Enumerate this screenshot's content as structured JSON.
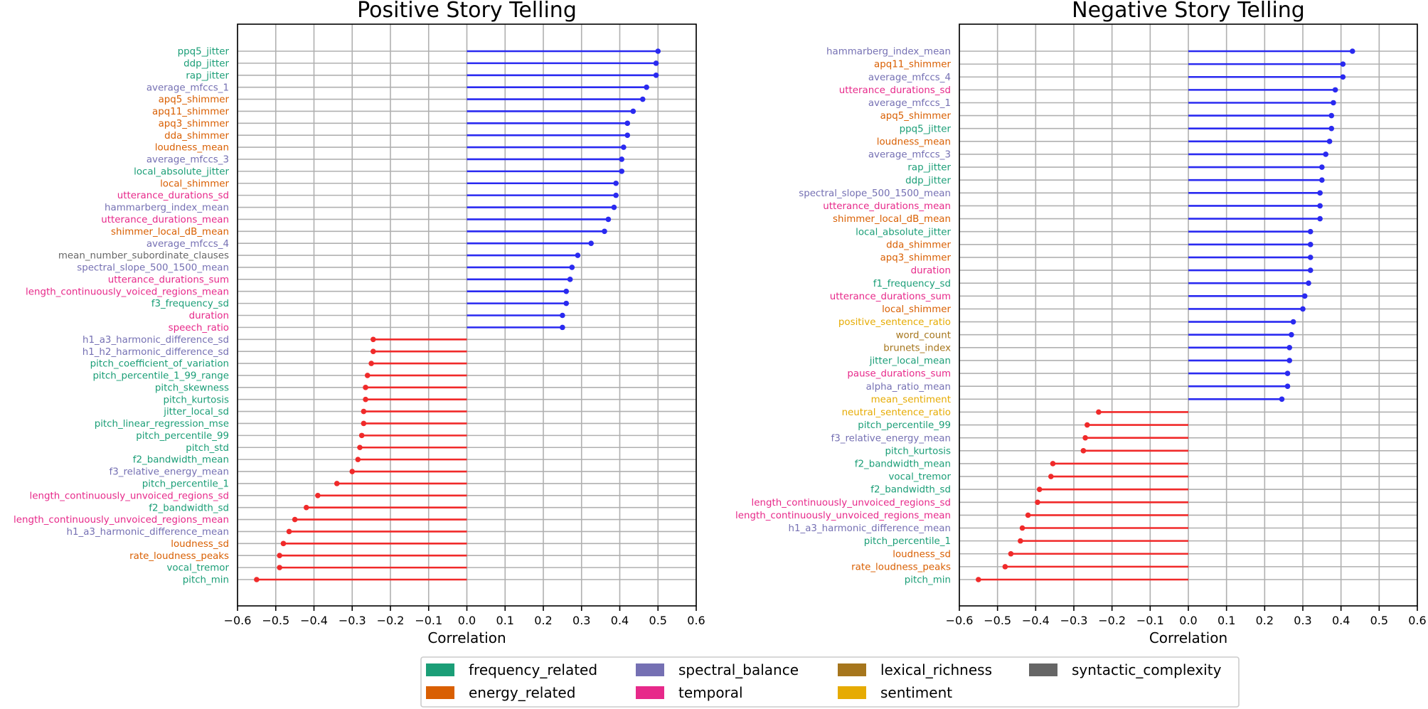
{
  "category_colors": {
    "frequency_related": "#1b9e77",
    "energy_related": "#d95f02",
    "spectral_balance": "#7570b3",
    "temporal": "#e7298a",
    "lexical_richness": "#a6761d",
    "sentiment": "#e6ab02",
    "syntactic_complexity": "#666666"
  },
  "series_colors": {
    "positive": "#2a2af0",
    "negative": "#f02a2a"
  },
  "legend": [
    {
      "label": "frequency_related",
      "category": "frequency_related"
    },
    {
      "label": "energy_related",
      "category": "energy_related"
    },
    {
      "label": "spectral_balance",
      "category": "spectral_balance"
    },
    {
      "label": "temporal",
      "category": "temporal"
    },
    {
      "label": "lexical_richness",
      "category": "lexical_richness"
    },
    {
      "label": "sentiment",
      "category": "sentiment"
    },
    {
      "label": "syntactic_complexity",
      "category": "syntactic_complexity"
    }
  ],
  "chart_data": [
    {
      "type": "lollipop-horizontal",
      "title": "Positive Story Telling",
      "xlabel": "Correlation",
      "xlim": [
        -0.6,
        0.6
      ],
      "xticks": [
        "−0.6",
        "−0.5",
        "−0.4",
        "−0.3",
        "−0.2",
        "−0.1",
        "0.0",
        "0.1",
        "0.2",
        "0.3",
        "0.4",
        "0.5",
        "0.6"
      ],
      "features": [
        {
          "name": "ppq5_jitter",
          "value": 0.5,
          "category": "frequency_related"
        },
        {
          "name": "ddp_jitter",
          "value": 0.495,
          "category": "frequency_related"
        },
        {
          "name": "rap_jitter",
          "value": 0.495,
          "category": "frequency_related"
        },
        {
          "name": "average_mfccs_1",
          "value": 0.47,
          "category": "spectral_balance"
        },
        {
          "name": "apq5_shimmer",
          "value": 0.46,
          "category": "energy_related"
        },
        {
          "name": "apq11_shimmer",
          "value": 0.435,
          "category": "energy_related"
        },
        {
          "name": "apq3_shimmer",
          "value": 0.42,
          "category": "energy_related"
        },
        {
          "name": "dda_shimmer",
          "value": 0.42,
          "category": "energy_related"
        },
        {
          "name": "loudness_mean",
          "value": 0.41,
          "category": "energy_related"
        },
        {
          "name": "average_mfccs_3",
          "value": 0.405,
          "category": "spectral_balance"
        },
        {
          "name": "local_absolute_jitter",
          "value": 0.405,
          "category": "frequency_related"
        },
        {
          "name": "local_shimmer",
          "value": 0.39,
          "category": "energy_related"
        },
        {
          "name": "utterance_durations_sd",
          "value": 0.39,
          "category": "temporal"
        },
        {
          "name": "hammarberg_index_mean",
          "value": 0.385,
          "category": "spectral_balance"
        },
        {
          "name": "utterance_durations_mean",
          "value": 0.37,
          "category": "temporal"
        },
        {
          "name": "shimmer_local_dB_mean",
          "value": 0.36,
          "category": "energy_related"
        },
        {
          "name": "average_mfccs_4",
          "value": 0.325,
          "category": "spectral_balance"
        },
        {
          "name": "mean_number_subordinate_clauses",
          "value": 0.29,
          "category": "syntactic_complexity"
        },
        {
          "name": "spectral_slope_500_1500_mean",
          "value": 0.275,
          "category": "spectral_balance"
        },
        {
          "name": "utterance_durations_sum",
          "value": 0.27,
          "category": "temporal"
        },
        {
          "name": "length_continuously_voiced_regions_mean",
          "value": 0.26,
          "category": "temporal"
        },
        {
          "name": "f3_frequency_sd",
          "value": 0.26,
          "category": "frequency_related"
        },
        {
          "name": "duration",
          "value": 0.25,
          "category": "temporal"
        },
        {
          "name": "speech_ratio",
          "value": 0.25,
          "category": "temporal"
        },
        {
          "name": "h1_a3_harmonic_difference_sd",
          "value": -0.245,
          "category": "spectral_balance"
        },
        {
          "name": "h1_h2_harmonic_difference_sd",
          "value": -0.245,
          "category": "spectral_balance"
        },
        {
          "name": "pitch_coefficient_of_variation",
          "value": -0.25,
          "category": "frequency_related"
        },
        {
          "name": "pitch_percentile_1_99_range",
          "value": -0.26,
          "category": "frequency_related"
        },
        {
          "name": "pitch_skewness",
          "value": -0.265,
          "category": "frequency_related"
        },
        {
          "name": "pitch_kurtosis",
          "value": -0.265,
          "category": "frequency_related"
        },
        {
          "name": "jitter_local_sd",
          "value": -0.27,
          "category": "frequency_related"
        },
        {
          "name": "pitch_linear_regression_mse",
          "value": -0.27,
          "category": "frequency_related"
        },
        {
          "name": "pitch_percentile_99",
          "value": -0.275,
          "category": "frequency_related"
        },
        {
          "name": "pitch_std",
          "value": -0.28,
          "category": "frequency_related"
        },
        {
          "name": "f2_bandwidth_mean",
          "value": -0.285,
          "category": "frequency_related"
        },
        {
          "name": "f3_relative_energy_mean",
          "value": -0.3,
          "category": "spectral_balance"
        },
        {
          "name": "pitch_percentile_1",
          "value": -0.34,
          "category": "frequency_related"
        },
        {
          "name": "length_continuously_unvoiced_regions_sd",
          "value": -0.39,
          "category": "temporal"
        },
        {
          "name": "f2_bandwidth_sd",
          "value": -0.42,
          "category": "frequency_related"
        },
        {
          "name": "length_continuously_unvoiced_regions_mean",
          "value": -0.45,
          "category": "temporal"
        },
        {
          "name": "h1_a3_harmonic_difference_mean",
          "value": -0.465,
          "category": "spectral_balance"
        },
        {
          "name": "loudness_sd",
          "value": -0.48,
          "category": "energy_related"
        },
        {
          "name": "rate_loudness_peaks",
          "value": -0.49,
          "category": "energy_related"
        },
        {
          "name": "vocal_tremor",
          "value": -0.49,
          "category": "frequency_related"
        },
        {
          "name": "pitch_min",
          "value": -0.55,
          "category": "frequency_related"
        }
      ]
    },
    {
      "type": "lollipop-horizontal",
      "title": "Negative Story Telling",
      "xlabel": "Correlation",
      "xlim": [
        -0.6,
        0.6
      ],
      "xticks": [
        "−0.6",
        "−0.5",
        "−0.4",
        "−0.3",
        "−0.2",
        "−0.1",
        "0.0",
        "0.1",
        "0.2",
        "0.3",
        "0.4",
        "0.5",
        "0.6"
      ],
      "features": [
        {
          "name": "hammarberg_index_mean",
          "value": 0.43,
          "category": "spectral_balance"
        },
        {
          "name": "apq11_shimmer",
          "value": 0.405,
          "category": "energy_related"
        },
        {
          "name": "average_mfccs_4",
          "value": 0.405,
          "category": "spectral_balance"
        },
        {
          "name": "utterance_durations_sd",
          "value": 0.385,
          "category": "temporal"
        },
        {
          "name": "average_mfccs_1",
          "value": 0.38,
          "category": "spectral_balance"
        },
        {
          "name": "apq5_shimmer",
          "value": 0.375,
          "category": "energy_related"
        },
        {
          "name": "ppq5_jitter",
          "value": 0.375,
          "category": "frequency_related"
        },
        {
          "name": "loudness_mean",
          "value": 0.37,
          "category": "energy_related"
        },
        {
          "name": "average_mfccs_3",
          "value": 0.36,
          "category": "spectral_balance"
        },
        {
          "name": "rap_jitter",
          "value": 0.35,
          "category": "frequency_related"
        },
        {
          "name": "ddp_jitter",
          "value": 0.35,
          "category": "frequency_related"
        },
        {
          "name": "spectral_slope_500_1500_mean",
          "value": 0.345,
          "category": "spectral_balance"
        },
        {
          "name": "utterance_durations_mean",
          "value": 0.345,
          "category": "temporal"
        },
        {
          "name": "shimmer_local_dB_mean",
          "value": 0.345,
          "category": "energy_related"
        },
        {
          "name": "local_absolute_jitter",
          "value": 0.32,
          "category": "frequency_related"
        },
        {
          "name": "dda_shimmer",
          "value": 0.32,
          "category": "energy_related"
        },
        {
          "name": "apq3_shimmer",
          "value": 0.32,
          "category": "energy_related"
        },
        {
          "name": "duration",
          "value": 0.32,
          "category": "temporal"
        },
        {
          "name": "f1_frequency_sd",
          "value": 0.315,
          "category": "frequency_related"
        },
        {
          "name": "utterance_durations_sum",
          "value": 0.305,
          "category": "temporal"
        },
        {
          "name": "local_shimmer",
          "value": 0.3,
          "category": "energy_related"
        },
        {
          "name": "positive_sentence_ratio",
          "value": 0.275,
          "category": "sentiment"
        },
        {
          "name": "word_count",
          "value": 0.27,
          "category": "lexical_richness"
        },
        {
          "name": "brunets_index",
          "value": 0.265,
          "category": "lexical_richness"
        },
        {
          "name": "jitter_local_mean",
          "value": 0.265,
          "category": "frequency_related"
        },
        {
          "name": "pause_durations_sum",
          "value": 0.26,
          "category": "temporal"
        },
        {
          "name": "alpha_ratio_mean",
          "value": 0.26,
          "category": "spectral_balance"
        },
        {
          "name": "mean_sentiment",
          "value": 0.245,
          "category": "sentiment"
        },
        {
          "name": "neutral_sentence_ratio",
          "value": -0.235,
          "category": "sentiment"
        },
        {
          "name": "pitch_percentile_99",
          "value": -0.265,
          "category": "frequency_related"
        },
        {
          "name": "f3_relative_energy_mean",
          "value": -0.27,
          "category": "spectral_balance"
        },
        {
          "name": "pitch_kurtosis",
          "value": -0.275,
          "category": "frequency_related"
        },
        {
          "name": "f2_bandwidth_mean",
          "value": -0.355,
          "category": "frequency_related"
        },
        {
          "name": "vocal_tremor",
          "value": -0.36,
          "category": "frequency_related"
        },
        {
          "name": "f2_bandwidth_sd",
          "value": -0.39,
          "category": "frequency_related"
        },
        {
          "name": "length_continuously_unvoiced_regions_sd",
          "value": -0.395,
          "category": "temporal"
        },
        {
          "name": "length_continuously_unvoiced_regions_mean",
          "value": -0.42,
          "category": "temporal"
        },
        {
          "name": "h1_a3_harmonic_difference_mean",
          "value": -0.435,
          "category": "spectral_balance"
        },
        {
          "name": "pitch_percentile_1",
          "value": -0.44,
          "category": "frequency_related"
        },
        {
          "name": "loudness_sd",
          "value": -0.465,
          "category": "energy_related"
        },
        {
          "name": "rate_loudness_peaks",
          "value": -0.48,
          "category": "energy_related"
        },
        {
          "name": "pitch_min",
          "value": -0.55,
          "category": "frequency_related"
        }
      ]
    }
  ]
}
